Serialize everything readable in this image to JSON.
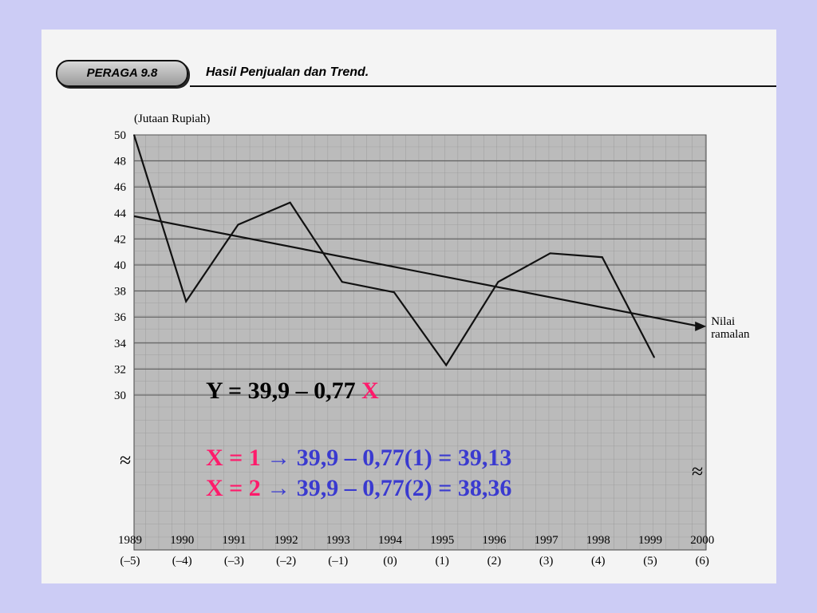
{
  "slide": {
    "badge": "PERAGA 9.8",
    "title": "Hasil Penjualan dan Trend."
  },
  "chart_data": {
    "type": "line",
    "ylabel": "(Jutaan Rupiah)",
    "ylim": [
      30,
      50
    ],
    "yticks": [
      "50",
      "48",
      "46",
      "44",
      "42",
      "40",
      "38",
      "36",
      "34",
      "32",
      "30"
    ],
    "x_years": [
      "1989",
      "1990",
      "1991",
      "1992",
      "1993",
      "1994",
      "1995",
      "1996",
      "1997",
      "1998",
      "1999",
      "2000"
    ],
    "x_codes": [
      "(–5)",
      "(–4)",
      "(–3)",
      "(–2)",
      "(–1)",
      "(0)",
      "(1)",
      "(2)",
      "(3)",
      "(4)",
      "(5)",
      "(6)"
    ],
    "series": [
      {
        "values": [
          50,
          37.2,
          43.1,
          44.8,
          38.7,
          37.9,
          32.3,
          38.7,
          40.9,
          40.6,
          32.9
        ]
      },
      {
        "values": [
          43.75,
          42.98,
          42.21,
          41.44,
          40.67,
          39.9,
          39.13,
          38.36,
          37.59,
          36.82,
          36.05,
          35.28
        ]
      }
    ],
    "trend_label": [
      "Nilai",
      "ramalan"
    ],
    "axis_break_symbol": "≈",
    "grid": true
  },
  "equations": {
    "main": {
      "prefix": "Y = 39,9 – 0,77 ",
      "var": "X"
    },
    "line1": {
      "x": "X = 1",
      "arrow": "→",
      "rest": " 39,9 – 0,77(1) = 39,13"
    },
    "line2": {
      "x": "X = 2",
      "arrow": "→",
      "rest": " 39,9 – 0,77(2) = 38,36"
    }
  },
  "colors": {
    "background": "#ccccf5",
    "highlight": "#ff1a6b",
    "equation_blue": "#3a3ad0",
    "plot_area": "#b9b9b9"
  }
}
